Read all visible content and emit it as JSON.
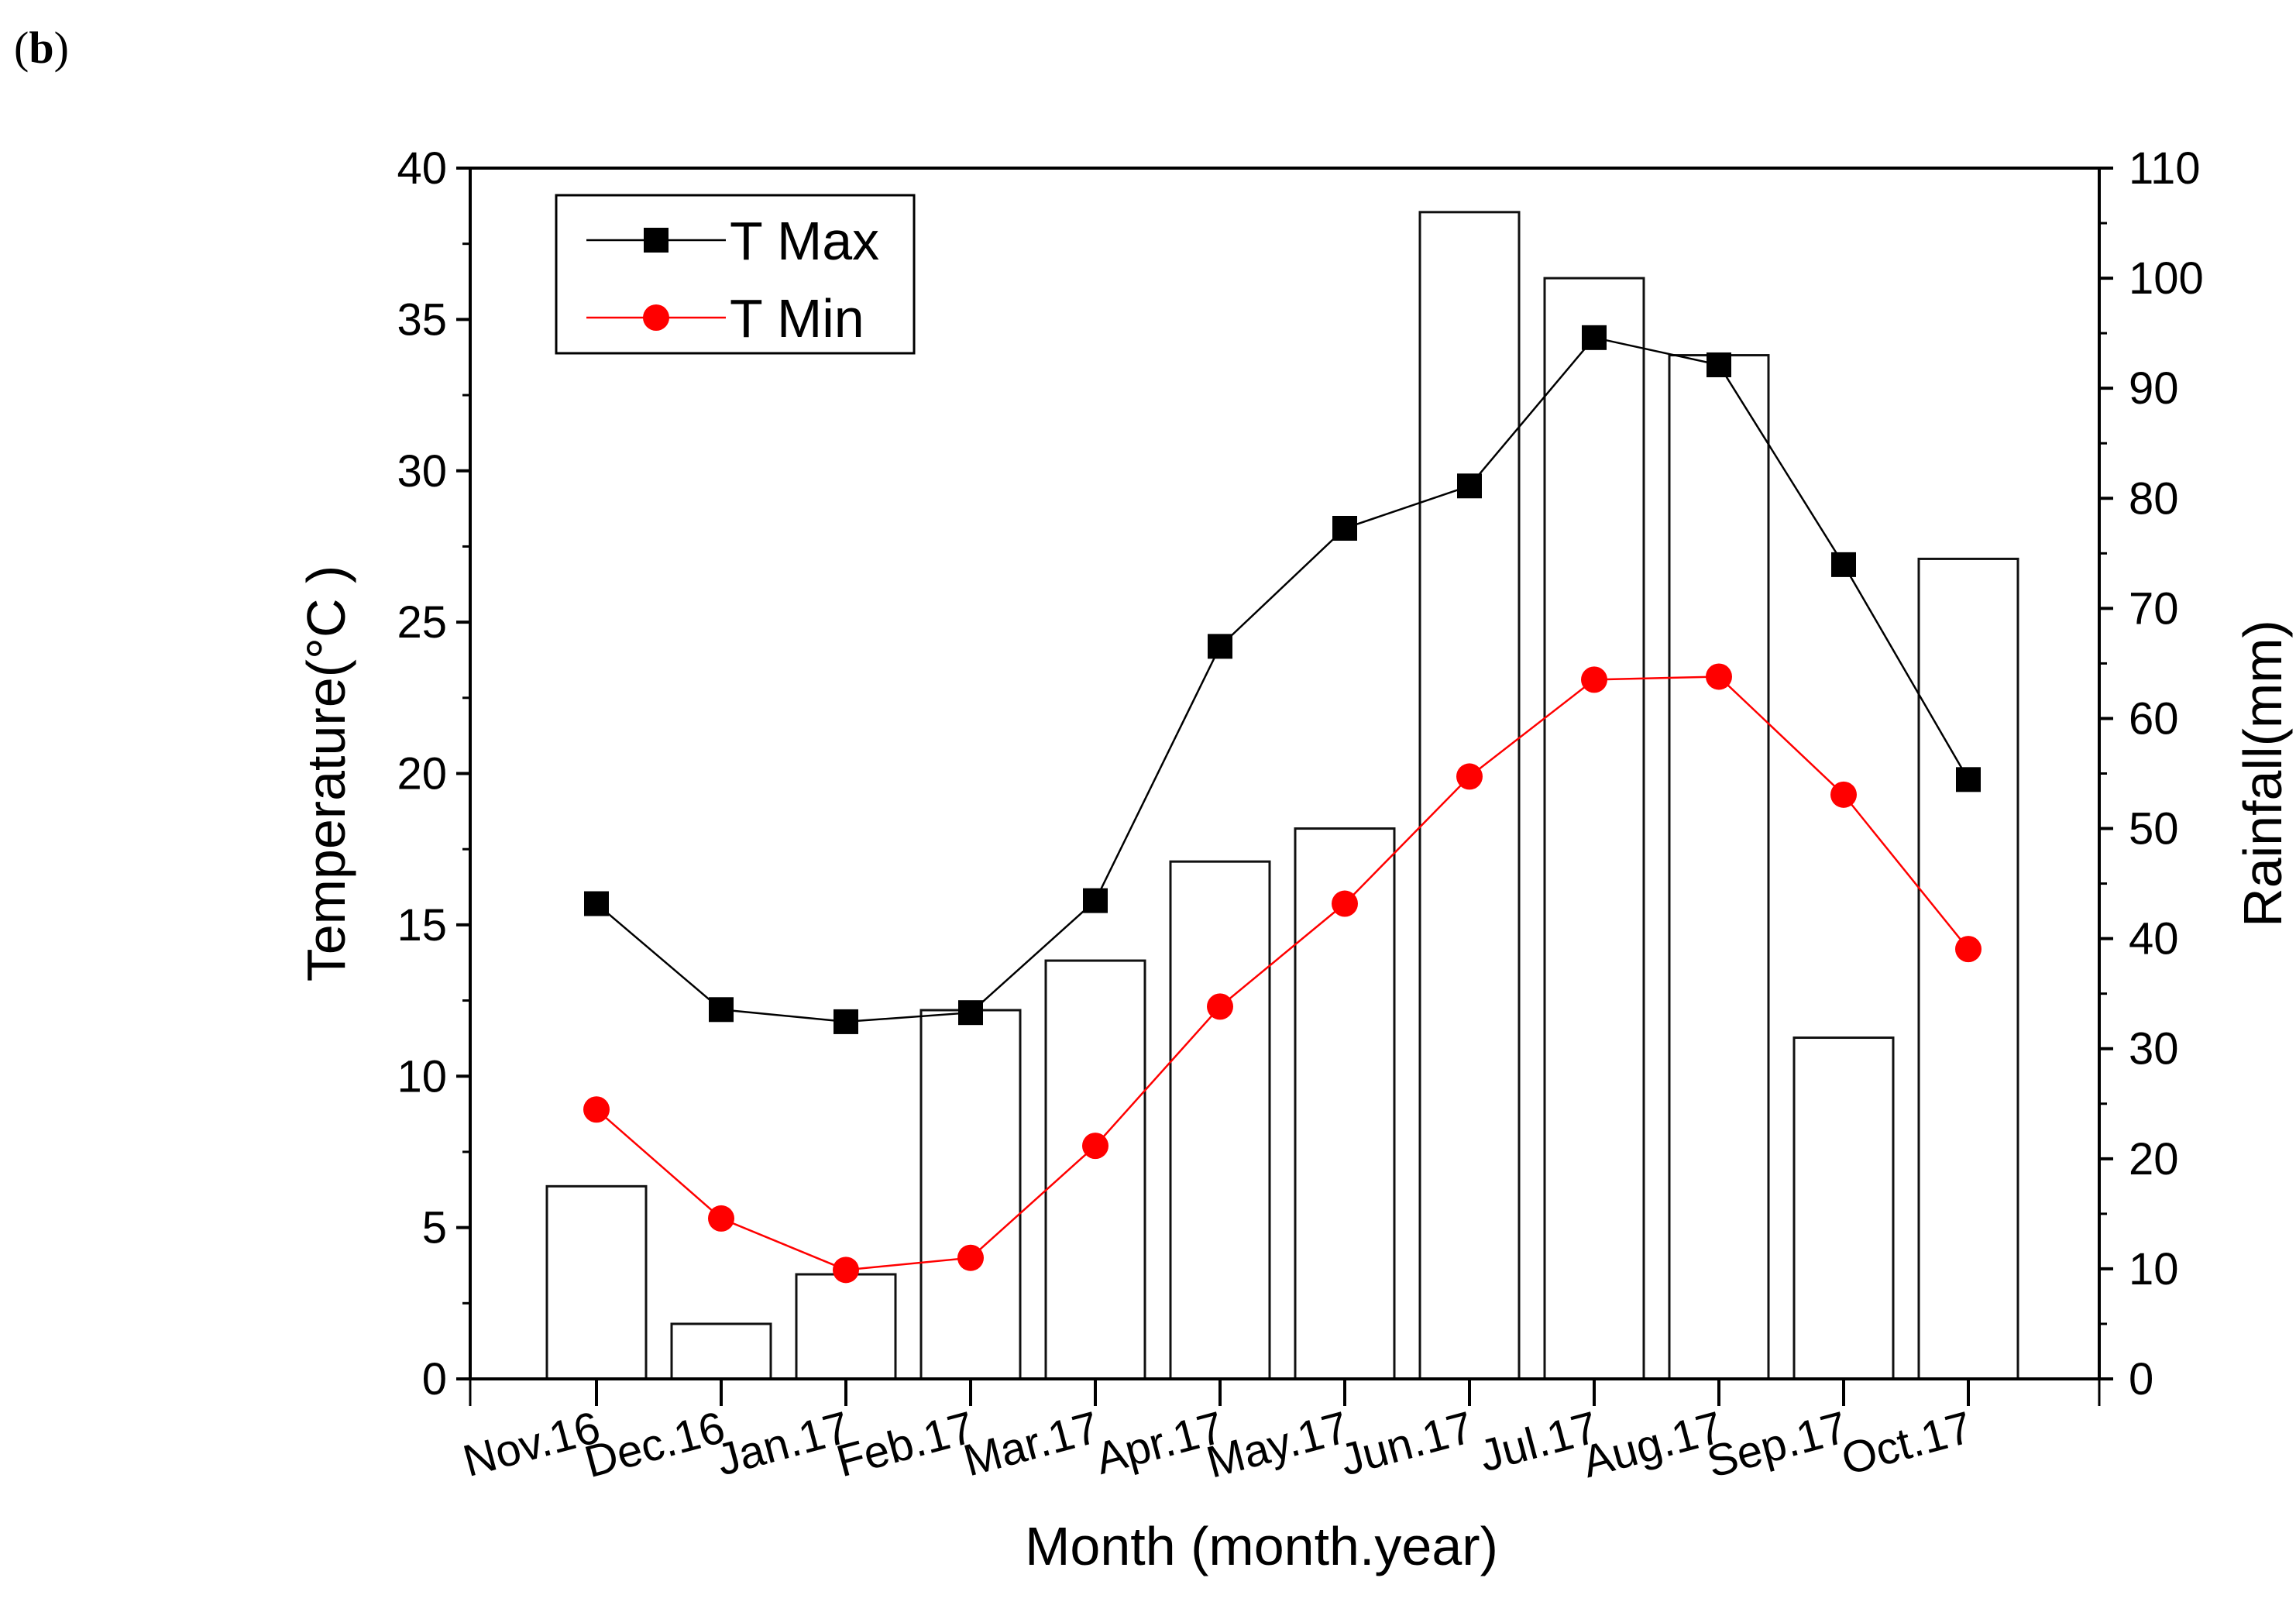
{
  "panel_label": "(b)",
  "panel_letter": "b",
  "chart_data": {
    "type": "bar+line",
    "title": "",
    "xlabel": "Month (month.year)",
    "ylabel_left": "Temperature(°C )",
    "ylabel_right": "Rainfall(mm)",
    "categories": [
      "Nov.16",
      "Dec.16",
      "Jan.17",
      "Feb.17",
      "Mar.17",
      "Apr.17",
      "May.17",
      "Jun.17",
      "Jul.17",
      "Aug.17",
      "Sep.17",
      "Oct.17"
    ],
    "ylim_left": [
      0,
      40
    ],
    "ylim_right": [
      0,
      110
    ],
    "yticks_left": [
      0,
      5,
      10,
      15,
      20,
      25,
      30,
      35,
      40
    ],
    "yticks_right": [
      0,
      10,
      20,
      30,
      40,
      50,
      60,
      70,
      80,
      90,
      100,
      110
    ],
    "grid": false,
    "legend_position": "top-left",
    "series": [
      {
        "name": "Rainfall",
        "type": "bar",
        "axis": "right",
        "values": [
          17.5,
          5,
          9.5,
          33.5,
          38,
          47,
          50,
          106,
          100,
          93,
          31,
          74.5
        ]
      },
      {
        "name": "T Max",
        "type": "line",
        "axis": "left",
        "marker": "square",
        "color": "#000000",
        "values": [
          15.7,
          12.2,
          11.8,
          12.1,
          15.8,
          24.2,
          28.1,
          29.5,
          34.4,
          33.5,
          26.9,
          19.8
        ]
      },
      {
        "name": "T Min",
        "type": "line",
        "axis": "left",
        "marker": "circle",
        "color": "#ff0000",
        "values": [
          8.9,
          5.3,
          3.6,
          4.0,
          7.7,
          12.3,
          15.7,
          19.9,
          23.1,
          23.2,
          19.3,
          14.2
        ]
      }
    ]
  }
}
